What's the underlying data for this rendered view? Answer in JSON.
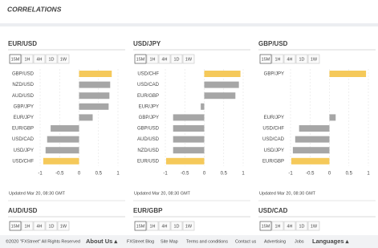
{
  "header": {
    "title": "CORRELATIONS"
  },
  "panels": [
    {
      "title": "EUR/USD",
      "tabs": [
        "15M",
        "1H",
        "4H",
        "1D",
        "1W"
      ],
      "chart": {
        "type": "bar",
        "orientation": "horizontal",
        "categories": [
          "GBP/USD",
          "NZD/USD",
          "AUD/USD",
          "GBP/JPY",
          "EUR/JPY",
          "EUR/GBP",
          "USD/CAD",
          "USD/JPY",
          "USD/CHF"
        ],
        "values": [
          0.84,
          0.8,
          0.78,
          0.76,
          0.35,
          -0.73,
          -0.82,
          -0.86,
          -0.92
        ],
        "colors": [
          "#f5c95a",
          "#a6a6a6",
          "#a6a6a6",
          "#a6a6a6",
          "#a6a6a6",
          "#a6a6a6",
          "#a6a6a6",
          "#a6a6a6",
          "#f5c95a"
        ],
        "xlim": [
          -1,
          1
        ],
        "xticks": [
          -1,
          -0.5,
          0,
          0.5,
          1
        ],
        "grid": true
      },
      "updated": "Updated Mar 20, 08:30 GMT"
    },
    {
      "title": "USD/JPY",
      "tabs": [
        "15M",
        "1H",
        "4H",
        "1D",
        "1W"
      ],
      "chart": {
        "type": "bar",
        "orientation": "horizontal",
        "categories": [
          "USD/CHF",
          "USD/CAD",
          "EUR/GBP",
          "EUR/JPY",
          "GBP/JPY",
          "GBP/USD",
          "AUD/USD",
          "NZD/USD",
          "EUR/USD"
        ],
        "values": [
          0.93,
          0.89,
          0.8,
          -0.09,
          -0.8,
          -0.8,
          -0.8,
          -0.8,
          -0.98
        ],
        "colors": [
          "#f5c95a",
          "#a6a6a6",
          "#a6a6a6",
          "#a6a6a6",
          "#a6a6a6",
          "#a6a6a6",
          "#a6a6a6",
          "#a6a6a6",
          "#f5c95a"
        ],
        "xlim": [
          -1,
          1
        ],
        "xticks": [
          -1,
          -0.5,
          0,
          0.5,
          1
        ],
        "grid": true
      },
      "updated": "Updated Mar 20, 08:30 GMT"
    },
    {
      "title": "GBP/USD",
      "tabs": [
        "15M",
        "1H",
        "4H",
        "1D",
        "1W"
      ],
      "chart": {
        "type": "bar",
        "orientation": "horizontal",
        "categories": [
          "GBP/JPY",
          null,
          null,
          null,
          "EUR/JPY",
          "USD/CHF",
          "USD/CAD",
          "USD/JPY",
          "EUR/GBP"
        ],
        "values": [
          0.94,
          null,
          null,
          null,
          0.16,
          -0.78,
          -0.88,
          -0.94,
          -0.98
        ],
        "colors": [
          "#f5c95a",
          null,
          null,
          null,
          "#a6a6a6",
          "#a6a6a6",
          "#a6a6a6",
          "#a6a6a6",
          "#f5c95a"
        ],
        "xlim": [
          -1,
          1
        ],
        "xticks": [
          -1,
          -0.5,
          0,
          0.5,
          1
        ],
        "grid": true
      },
      "updated": "Updated Mar 20, 08:30 GMT"
    },
    {
      "title": "AUD/USD",
      "tabs": [
        "15M",
        "1H",
        "4H",
        "1D",
        "1W"
      ]
    },
    {
      "title": "EUR/GBP",
      "tabs": [
        "15M",
        "1H",
        "4H",
        "1D",
        "1W"
      ]
    },
    {
      "title": "USD/CAD",
      "tabs": [
        "15M",
        "1H",
        "4H",
        "1D",
        "1W"
      ]
    }
  ],
  "footer": {
    "copyright": "©2020 \"FXStreet\" All Rights Reserved",
    "links": [
      "About Us ▴",
      "FXStreet Blog",
      "Site Map",
      "Terms and conditions",
      "Contact us",
      "Advertising",
      "Jobs",
      "Languages ▴"
    ]
  }
}
